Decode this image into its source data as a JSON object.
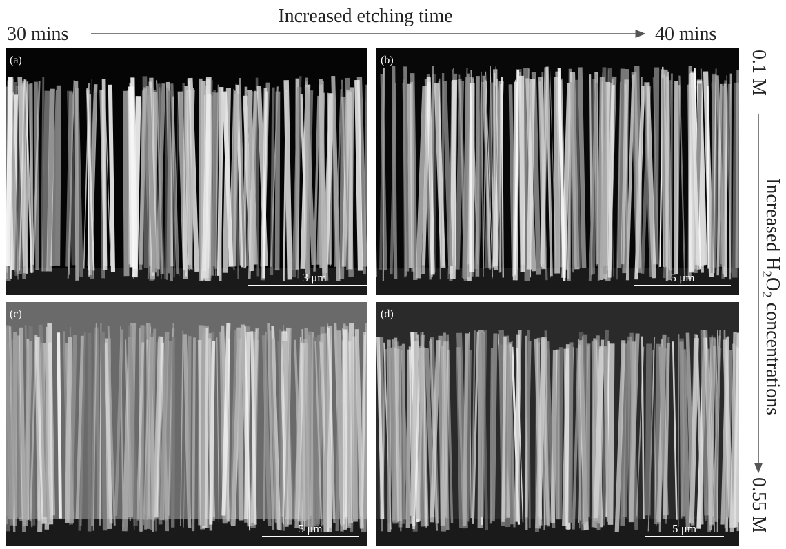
{
  "header": {
    "title": "Increased etching time",
    "start": "30 mins",
    "end": "40 mins"
  },
  "side": {
    "start": "0.1 M",
    "end": "0.55 M",
    "label_parts": [
      "Increased H",
      "2",
      "O",
      "2",
      " concentrations"
    ]
  },
  "panels": [
    {
      "label": "(a)",
      "scale_bar": "3 μm"
    },
    {
      "label": "(b)",
      "scale_bar": "5 μm"
    },
    {
      "label": "(c)",
      "scale_bar": "5 μm"
    },
    {
      "label": "(d)",
      "scale_bar": "5 μm"
    }
  ]
}
